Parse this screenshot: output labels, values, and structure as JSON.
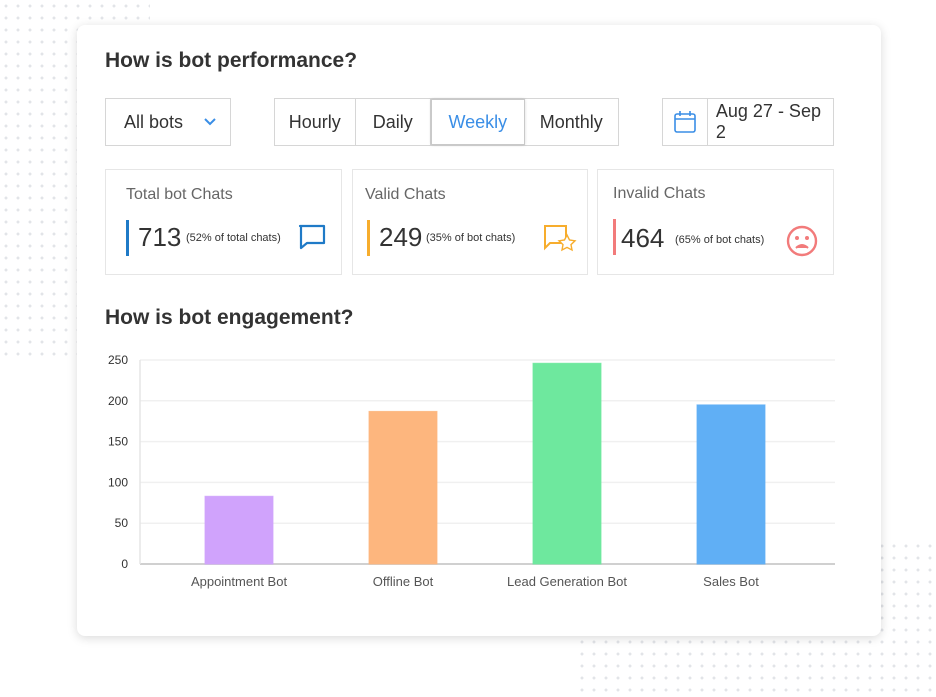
{
  "performance": {
    "title": "How is bot performance?",
    "bot_select": "All bots",
    "periods": [
      "Hourly",
      "Daily",
      "Weekly",
      "Monthly"
    ],
    "active_period": "Weekly",
    "date_range": "Aug 27 - Sep 2"
  },
  "stats": [
    {
      "title": "Total bot Chats",
      "value": "713",
      "note": "(52% of total chats)",
      "color": "#1f7ac7",
      "icon": "chat-bubble-icon"
    },
    {
      "title": "Valid Chats",
      "value": "249",
      "note": "(35% of bot chats)",
      "color": "#f7ad2d",
      "icon": "chat-star-icon"
    },
    {
      "title": "Invalid Chats",
      "value": "464",
      "note": "(65% of bot chats)",
      "color": "#f27b7b",
      "icon": "sad-face-icon"
    }
  ],
  "engagement": {
    "title": "How is bot engagement?"
  },
  "chart_data": {
    "type": "bar",
    "title": "How is bot engagement?",
    "xlabel": "",
    "ylabel": "",
    "categories": [
      "Appointment Bot",
      "Offline Bot",
      "Lead Generation Bot",
      "Sales Bot"
    ],
    "values": [
      83,
      187,
      246,
      195
    ],
    "colors": [
      "#d0a3fc",
      "#fdb67e",
      "#6ee89e",
      "#60aff5"
    ],
    "yticks": [
      0,
      50,
      100,
      150,
      200,
      250
    ],
    "ylim": [
      0,
      250
    ],
    "grid": true
  }
}
